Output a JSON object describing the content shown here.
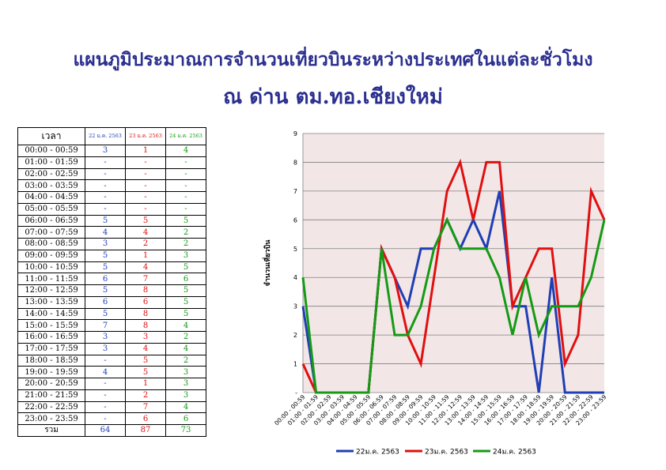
{
  "title_line1": "แผนภูมิประมาณการจำนวนเที่ยวบินระหว่างประเทศในแต่ละชั่วโมง",
  "title_line2": "ณ ด่าน ตม.ทอ.เชียงใหม่",
  "table": {
    "time_header": "เวลา",
    "series_headers": [
      "22 ม.ค. 2563",
      "23 ม.ค. 2563",
      "24 ม.ค. 2563"
    ],
    "rows": [
      {
        "time": "00:00 - 00:59",
        "v": [
          "3",
          "1",
          "4"
        ]
      },
      {
        "time": "01:00 - 01:59",
        "v": [
          "-",
          "-",
          "-"
        ]
      },
      {
        "time": "02:00 - 02:59",
        "v": [
          "-",
          "-",
          "-"
        ]
      },
      {
        "time": "03:00 - 03:59",
        "v": [
          "-",
          "-",
          "-"
        ]
      },
      {
        "time": "04:00 - 04:59",
        "v": [
          "-",
          "-",
          "-"
        ]
      },
      {
        "time": "05:00 - 05:59",
        "v": [
          "-",
          "-",
          "-"
        ]
      },
      {
        "time": "06:00 - 06:59",
        "v": [
          "5",
          "5",
          "5"
        ]
      },
      {
        "time": "07:00 - 07:59",
        "v": [
          "4",
          "4",
          "2"
        ]
      },
      {
        "time": "08:00 - 08:59",
        "v": [
          "3",
          "2",
          "2"
        ]
      },
      {
        "time": "09:00 - 09:59",
        "v": [
          "5",
          "1",
          "3"
        ]
      },
      {
        "time": "10:00 - 10:59",
        "v": [
          "5",
          "4",
          "5"
        ]
      },
      {
        "time": "11:00 - 11:59",
        "v": [
          "6",
          "7",
          "6"
        ]
      },
      {
        "time": "12:00 - 12:59",
        "v": [
          "5",
          "8",
          "5"
        ]
      },
      {
        "time": "13:00 - 13:59",
        "v": [
          "6",
          "6",
          "5"
        ]
      },
      {
        "time": "14:00 - 14:59",
        "v": [
          "5",
          "8",
          "5"
        ]
      },
      {
        "time": "15:00 - 15:59",
        "v": [
          "7",
          "8",
          "4"
        ]
      },
      {
        "time": "16:00 - 16:59",
        "v": [
          "3",
          "3",
          "2"
        ]
      },
      {
        "time": "17:00 - 17:59",
        "v": [
          "3",
          "4",
          "4"
        ]
      },
      {
        "time": "18:00 - 18:59",
        "v": [
          "-",
          "5",
          "2"
        ]
      },
      {
        "time": "19:00 - 19:59",
        "v": [
          "4",
          "5",
          "3"
        ]
      },
      {
        "time": "20:00 - 20:59",
        "v": [
          "-",
          "1",
          "3"
        ]
      },
      {
        "time": "21:00 - 21:59",
        "v": [
          "-",
          "2",
          "3"
        ]
      },
      {
        "time": "22:00 - 22:59",
        "v": [
          "-",
          "7",
          "4"
        ]
      },
      {
        "time": "23:00 - 23:59",
        "v": [
          "-",
          "6",
          "6"
        ]
      }
    ],
    "total_label": "รวม",
    "totals": [
      "64",
      "87",
      "73"
    ]
  },
  "colors": {
    "title": "#2b2f8f",
    "series": [
      "#1f3fb5",
      "#e01010",
      "#159a15"
    ],
    "plot_bg": "#f3e6e6",
    "grid": "#808080"
  },
  "chart_data": {
    "type": "line",
    "x": [
      "00:00 - 00:59",
      "01:00 - 01:59",
      "02:00 - 02:59",
      "03:00 - 03:59",
      "04:00 - 04:59",
      "05:00 - 05:59",
      "06:00 - 06:59",
      "07:00 - 07:59",
      "08:00 - 08:59",
      "09:00 - 09:59",
      "10:00 - 10:59",
      "11:00 - 11:59",
      "12:00 - 12:59",
      "13:00 - 13:59",
      "14:00 - 14:59",
      "15:00 - 15:59",
      "16:00 - 16:59",
      "17:00 - 17:59",
      "18:00 - 18:59",
      "19:00 - 19:59",
      "20:00 - 20:59",
      "21:00 - 21:59",
      "22:00 - 22:59",
      "23:00 - 23:59"
    ],
    "series": [
      {
        "name": "22ม.ค. 2563",
        "values": [
          3,
          0,
          0,
          0,
          0,
          0,
          5,
          4,
          3,
          5,
          5,
          6,
          5,
          6,
          5,
          7,
          3,
          3,
          0,
          4,
          0,
          0,
          0,
          0
        ]
      },
      {
        "name": "23ม.ค. 2563",
        "values": [
          1,
          0,
          0,
          0,
          0,
          0,
          5,
          4,
          2,
          1,
          4,
          7,
          8,
          6,
          8,
          8,
          3,
          4,
          5,
          5,
          1,
          2,
          7,
          6
        ]
      },
      {
        "name": "24ม.ค. 2563",
        "values": [
          4,
          0,
          0,
          0,
          0,
          0,
          5,
          2,
          2,
          3,
          5,
          6,
          5,
          5,
          5,
          4,
          2,
          4,
          2,
          3,
          3,
          3,
          4,
          6
        ]
      }
    ],
    "ylabel": "จำนวนเที่ยวบิน",
    "xlabel": "",
    "ylim": [
      0,
      9
    ],
    "yticks": [
      "-",
      "1",
      "2",
      "3",
      "4",
      "5",
      "6",
      "7",
      "8",
      "9"
    ],
    "grid": true,
    "legend": "bottom"
  }
}
